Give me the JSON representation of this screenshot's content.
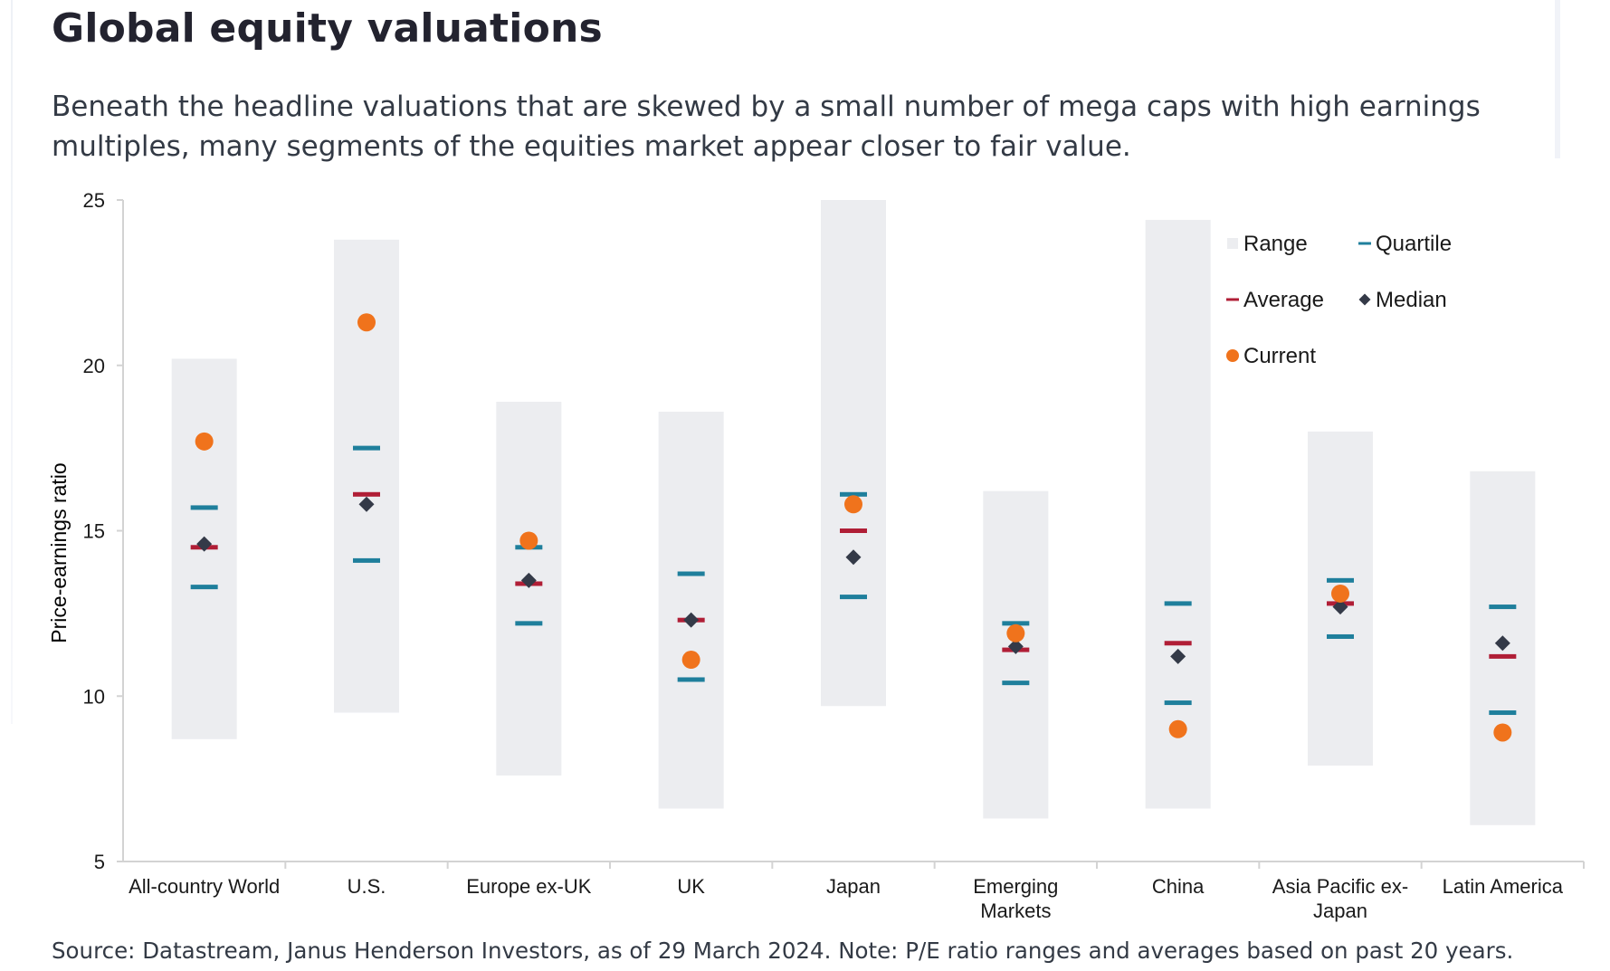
{
  "header": {
    "title": "Global equity valuations",
    "subtitle": "Beneath the headline valuations that are skewed by a small number of mega caps with high earnings multiples, many segments of the equities market appear closer to fair value."
  },
  "footer": {
    "source": "Source: Datastream, Janus Henderson Investors, as of 29 March 2024. Note: P/E ratio ranges and averages based on past 20 years."
  },
  "colors": {
    "range": "#ecedf0",
    "quartile": "#1f7f9c",
    "average": "#b01e36",
    "median": "#343a48",
    "current": "#f0731c",
    "axis": "#d3d3d3",
    "text": "#1a1a1a"
  },
  "chart_data": {
    "type": "range-marker",
    "ylabel": "Price-earnings ratio",
    "xlabel": "",
    "ylim": [
      5,
      25
    ],
    "yticks": [
      5,
      10,
      15,
      20,
      25
    ],
    "grid": false,
    "legend_position": "top-right",
    "legend": [
      {
        "key": "range",
        "label": "Range",
        "symbol": "square"
      },
      {
        "key": "quartile",
        "label": "Quartile",
        "symbol": "dash"
      },
      {
        "key": "average",
        "label": "Average",
        "symbol": "dash"
      },
      {
        "key": "median",
        "label": "Median",
        "symbol": "diamond"
      },
      {
        "key": "current",
        "label": "Current",
        "symbol": "circle"
      }
    ],
    "categories": [
      [
        "All-country World"
      ],
      [
        "U.S."
      ],
      [
        "Europe ex-UK"
      ],
      [
        "UK"
      ],
      [
        "Japan"
      ],
      [
        "Emerging",
        "Markets"
      ],
      [
        "China"
      ],
      [
        "Asia Pacific ex-",
        "Japan"
      ],
      [
        "Latin America"
      ]
    ],
    "series": [
      {
        "name": "Range",
        "key": "range",
        "values": [
          [
            8.7,
            20.2
          ],
          [
            9.5,
            23.8
          ],
          [
            7.6,
            18.9
          ],
          [
            6.6,
            18.6
          ],
          [
            9.7,
            25.0
          ],
          [
            6.3,
            16.2
          ],
          [
            6.6,
            24.4
          ],
          [
            7.9,
            18.0
          ],
          [
            6.1,
            16.8
          ]
        ]
      },
      {
        "name": "Quartile",
        "key": "quartile",
        "values": [
          [
            13.3,
            15.7
          ],
          [
            14.1,
            17.5
          ],
          [
            12.2,
            14.5
          ],
          [
            10.5,
            13.7
          ],
          [
            13.0,
            16.1
          ],
          [
            10.4,
            12.2
          ],
          [
            9.8,
            12.8
          ],
          [
            11.8,
            13.5
          ],
          [
            9.5,
            12.7
          ]
        ]
      },
      {
        "name": "Average",
        "key": "average",
        "values": [
          14.5,
          16.1,
          13.4,
          12.3,
          15.0,
          11.4,
          11.6,
          12.8,
          11.2
        ]
      },
      {
        "name": "Median",
        "key": "median",
        "values": [
          14.6,
          15.8,
          13.5,
          12.3,
          14.2,
          11.5,
          11.2,
          12.7,
          11.6
        ]
      },
      {
        "name": "Current",
        "key": "current",
        "values": [
          17.7,
          21.3,
          14.7,
          11.1,
          15.8,
          11.9,
          9.0,
          13.1,
          8.9
        ]
      }
    ]
  }
}
